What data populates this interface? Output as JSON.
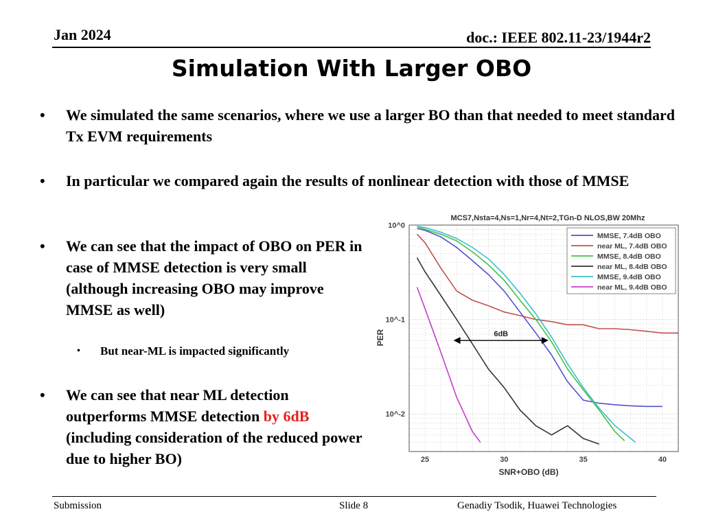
{
  "header": {
    "date": "Jan 2024",
    "doc": "doc.: IEEE 802.11-23/1944r2"
  },
  "title": "Simulation With Larger OBO",
  "bullets": {
    "b1": "We simulated the same scenarios, where we use a larger BO than that needed to meet standard Tx EVM requirements",
    "b2": "In particular we compared again the results of nonlinear detection with those of MMSE",
    "b3": "We can see that the impact of OBO on PER in case of MMSE detection is very small (although increasing OBO may improve MMSE as well)",
    "b4": "But near-ML is impacted significantly",
    "b5_pre": "We can see that near ML detection outperforms MMSE detection ",
    "b5_red": "by 6dB",
    "b5_post": " (including consideration of the reduced power due to higher BO)",
    "dot": "•"
  },
  "footer": {
    "left": "Submission",
    "center": "Slide 8",
    "right": "Genadiy Tsodik, Huawei Technologies"
  },
  "colors": {
    "highlight": "#e8201c"
  },
  "chart_data": {
    "type": "line",
    "title": "MCS7,Nsta=4,Ns=1,Nr=4,Nt=2,TGn-D NLOS,BW 20Mhz",
    "xlabel": "SNR+OBO (dB)",
    "ylabel": "PER",
    "xlim": [
      24,
      41
    ],
    "ylim": [
      0.004,
      1
    ],
    "yscale": "log",
    "x_ticks": [
      "25",
      "30",
      "35",
      "40"
    ],
    "y_ticks": [
      "10^0",
      "10^-1",
      "10^-2"
    ],
    "grid": true,
    "legend_position": "top-right",
    "annotation": {
      "text": "6dB",
      "x_from": 26.8,
      "x_to": 32.8,
      "y": 0.06
    },
    "series": [
      {
        "name": "MMSE, 7.4dB OBO",
        "color": "#5050d0",
        "x": [
          24.5,
          25,
          26,
          27,
          28,
          29,
          30,
          31,
          32,
          33,
          34,
          35,
          36,
          37,
          38,
          39,
          40
        ],
        "y": [
          0.92,
          0.88,
          0.75,
          0.58,
          0.42,
          0.3,
          0.2,
          0.12,
          0.072,
          0.042,
          0.022,
          0.014,
          0.013,
          0.0125,
          0.0122,
          0.012,
          0.012
        ]
      },
      {
        "name": "near ML, 7.4dB OBO",
        "color": "#c0504d",
        "x": [
          24.5,
          25,
          26,
          27,
          28,
          29,
          30,
          31,
          32,
          33,
          34,
          35,
          36,
          37,
          38,
          39,
          40,
          41
        ],
        "y": [
          0.8,
          0.65,
          0.35,
          0.2,
          0.16,
          0.14,
          0.12,
          0.11,
          0.1,
          0.095,
          0.088,
          0.088,
          0.08,
          0.08,
          0.078,
          0.075,
          0.072,
          0.072
        ]
      },
      {
        "name": "MMSE, 8.4dB OBO",
        "color": "#44c044",
        "x": [
          24.5,
          25,
          26,
          27,
          28,
          29,
          30,
          31,
          32,
          33,
          34,
          35,
          36,
          37,
          37.6
        ],
        "y": [
          0.96,
          0.9,
          0.8,
          0.68,
          0.52,
          0.38,
          0.26,
          0.16,
          0.1,
          0.058,
          0.03,
          0.018,
          0.011,
          0.0065,
          0.0052
        ]
      },
      {
        "name": "near ML, 8.4dB OBO",
        "color": "#333333",
        "x": [
          24.5,
          25,
          26,
          27,
          28,
          29,
          30,
          31,
          32,
          33,
          34,
          35,
          36
        ],
        "y": [
          0.45,
          0.32,
          0.18,
          0.1,
          0.055,
          0.03,
          0.019,
          0.011,
          0.0075,
          0.006,
          0.0075,
          0.0055,
          0.0048
        ]
      },
      {
        "name": "MMSE, 9.4dB OBO",
        "color": "#38c0c8",
        "x": [
          24.5,
          25,
          26,
          27,
          28,
          29,
          30,
          31,
          32,
          33,
          34,
          35,
          36,
          37,
          38,
          38.3
        ],
        "y": [
          0.97,
          0.94,
          0.84,
          0.72,
          0.58,
          0.44,
          0.3,
          0.19,
          0.115,
          0.065,
          0.034,
          0.019,
          0.0115,
          0.0075,
          0.0055,
          0.005
        ]
      },
      {
        "name": "near ML, 9.4dB OBO",
        "color": "#c040c8",
        "x": [
          24.5,
          25,
          26,
          27,
          28,
          28.5
        ],
        "y": [
          0.22,
          0.13,
          0.045,
          0.015,
          0.0065,
          0.005
        ]
      }
    ]
  }
}
